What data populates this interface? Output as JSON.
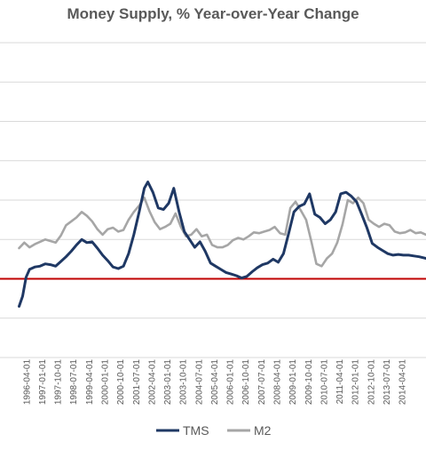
{
  "chart_data": {
    "type": "line",
    "title": "Money Supply, % Year-over-Year Change",
    "xlabel": "",
    "ylabel": "",
    "x_range": [
      "1995-01-01",
      "2015-06-01"
    ],
    "y_range": [
      -10,
      30
    ],
    "y_gridlines": [
      -10,
      -5,
      0,
      5,
      10,
      15,
      20,
      25,
      30
    ],
    "grid": "horizontal",
    "legend_position": "bottom",
    "x_tick_labels": [
      "1996-04-01",
      "1997-01-01",
      "1997-10-01",
      "1998-07-01",
      "1999-04-01",
      "2000-01-01",
      "2000-10-01",
      "2001-07-01",
      "2002-04-01",
      "2003-01-01",
      "2003-10-01",
      "2004-07-01",
      "2005-04-01",
      "2006-01-01",
      "2006-10-01",
      "2007-07-01",
      "2008-04-01",
      "2009-01-01",
      "2009-10-01",
      "2010-07-01",
      "2011-04-01",
      "2012-01-01",
      "2012-10-01",
      "2013-07-01",
      "2014-04-01"
    ],
    "reference_line": {
      "value": 0,
      "color": "#c00000"
    },
    "series": [
      {
        "name": "TMS",
        "color": "#1f3864",
        "points": [
          [
            "1995-12-01",
            -3.5
          ],
          [
            "1996-02-01",
            -2.2
          ],
          [
            "1996-04-01",
            0.2
          ],
          [
            "1996-06-01",
            1.2
          ],
          [
            "1996-09-01",
            1.5
          ],
          [
            "1996-12-01",
            1.6
          ],
          [
            "1997-03-01",
            1.9
          ],
          [
            "1997-06-01",
            1.8
          ],
          [
            "1997-09-01",
            1.6
          ],
          [
            "1997-12-01",
            2.2
          ],
          [
            "1998-03-01",
            2.8
          ],
          [
            "1998-06-01",
            3.5
          ],
          [
            "1998-09-01",
            4.3
          ],
          [
            "1998-12-01",
            5.0
          ],
          [
            "1999-03-01",
            4.6
          ],
          [
            "1999-06-01",
            4.7
          ],
          [
            "1999-09-01",
            3.9
          ],
          [
            "1999-12-01",
            3.0
          ],
          [
            "2000-03-01",
            2.3
          ],
          [
            "2000-06-01",
            1.5
          ],
          [
            "2000-09-01",
            1.3
          ],
          [
            "2000-12-01",
            1.6
          ],
          [
            "2001-03-01",
            3.2
          ],
          [
            "2001-06-01",
            5.6
          ],
          [
            "2001-09-01",
            8.5
          ],
          [
            "2001-12-01",
            11.5
          ],
          [
            "2002-02-01",
            12.3
          ],
          [
            "2002-05-01",
            11.0
          ],
          [
            "2002-08-01",
            9.0
          ],
          [
            "2002-11-01",
            8.8
          ],
          [
            "2003-02-01",
            9.6
          ],
          [
            "2003-05-01",
            11.5
          ],
          [
            "2003-08-01",
            8.5
          ],
          [
            "2003-11-01",
            6.0
          ],
          [
            "2004-02-01",
            5.0
          ],
          [
            "2004-05-01",
            4.0
          ],
          [
            "2004-08-01",
            4.7
          ],
          [
            "2004-11-01",
            3.5
          ],
          [
            "2005-02-01",
            2.0
          ],
          [
            "2005-05-01",
            1.6
          ],
          [
            "2005-08-01",
            1.2
          ],
          [
            "2005-11-01",
            0.8
          ],
          [
            "2006-02-01",
            0.6
          ],
          [
            "2006-05-01",
            0.4
          ],
          [
            "2006-08-01",
            0.1
          ],
          [
            "2006-11-01",
            0.3
          ],
          [
            "2007-02-01",
            0.9
          ],
          [
            "2007-05-01",
            1.4
          ],
          [
            "2007-08-01",
            1.8
          ],
          [
            "2007-11-01",
            2.0
          ],
          [
            "2008-02-01",
            2.5
          ],
          [
            "2008-05-01",
            2.1
          ],
          [
            "2008-08-01",
            3.2
          ],
          [
            "2008-11-01",
            5.8
          ],
          [
            "2009-02-01",
            8.5
          ],
          [
            "2009-05-01",
            9.2
          ],
          [
            "2009-08-01",
            9.5
          ],
          [
            "2009-11-01",
            10.8
          ],
          [
            "2010-02-01",
            8.2
          ],
          [
            "2010-05-01",
            7.8
          ],
          [
            "2010-08-01",
            7.0
          ],
          [
            "2010-11-01",
            7.5
          ],
          [
            "2011-02-01",
            8.5
          ],
          [
            "2011-05-01",
            10.8
          ],
          [
            "2011-08-01",
            11.0
          ],
          [
            "2011-11-01",
            10.5
          ],
          [
            "2012-02-01",
            9.8
          ],
          [
            "2012-05-01",
            8.2
          ],
          [
            "2012-08-01",
            6.5
          ],
          [
            "2012-11-01",
            4.5
          ],
          [
            "2013-02-01",
            4.0
          ],
          [
            "2013-05-01",
            3.6
          ],
          [
            "2013-08-01",
            3.2
          ],
          [
            "2013-11-01",
            3.0
          ],
          [
            "2014-02-01",
            3.1
          ],
          [
            "2014-05-01",
            3.0
          ],
          [
            "2014-08-01",
            3.0
          ],
          [
            "2014-11-01",
            2.9
          ],
          [
            "2015-02-01",
            2.8
          ],
          [
            "2015-06-01",
            2.6
          ]
        ]
      },
      {
        "name": "M2",
        "color": "#a6a6a6",
        "points": [
          [
            "1995-12-01",
            3.9
          ],
          [
            "1996-03-01",
            4.6
          ],
          [
            "1996-06-01",
            4.0
          ],
          [
            "1996-09-01",
            4.4
          ],
          [
            "1996-12-01",
            4.7
          ],
          [
            "1997-03-01",
            5.0
          ],
          [
            "1997-06-01",
            4.8
          ],
          [
            "1997-09-01",
            4.6
          ],
          [
            "1997-12-01",
            5.5
          ],
          [
            "1998-03-01",
            6.8
          ],
          [
            "1998-06-01",
            7.3
          ],
          [
            "1998-09-01",
            7.8
          ],
          [
            "1998-12-01",
            8.5
          ],
          [
            "1999-03-01",
            8.0
          ],
          [
            "1999-06-01",
            7.3
          ],
          [
            "1999-09-01",
            6.3
          ],
          [
            "1999-12-01",
            5.6
          ],
          [
            "2000-03-01",
            6.3
          ],
          [
            "2000-06-01",
            6.5
          ],
          [
            "2000-09-01",
            6.0
          ],
          [
            "2000-12-01",
            6.2
          ],
          [
            "2001-03-01",
            7.5
          ],
          [
            "2001-06-01",
            8.5
          ],
          [
            "2001-09-01",
            9.3
          ],
          [
            "2001-12-01",
            10.3
          ],
          [
            "2002-03-01",
            8.6
          ],
          [
            "2002-06-01",
            7.2
          ],
          [
            "2002-09-01",
            6.3
          ],
          [
            "2002-12-01",
            6.6
          ],
          [
            "2003-03-01",
            7.0
          ],
          [
            "2003-06-01",
            8.3
          ],
          [
            "2003-09-01",
            6.6
          ],
          [
            "2003-12-01",
            5.4
          ],
          [
            "2004-03-01",
            5.6
          ],
          [
            "2004-06-01",
            6.3
          ],
          [
            "2004-09-01",
            5.4
          ],
          [
            "2004-12-01",
            5.6
          ],
          [
            "2005-03-01",
            4.3
          ],
          [
            "2005-06-01",
            4.0
          ],
          [
            "2005-09-01",
            4.0
          ],
          [
            "2005-12-01",
            4.3
          ],
          [
            "2006-03-01",
            4.9
          ],
          [
            "2006-06-01",
            5.2
          ],
          [
            "2006-09-01",
            5.0
          ],
          [
            "2006-12-01",
            5.4
          ],
          [
            "2007-03-01",
            5.9
          ],
          [
            "2007-06-01",
            5.8
          ],
          [
            "2007-09-01",
            6.0
          ],
          [
            "2007-12-01",
            6.2
          ],
          [
            "2008-03-01",
            6.6
          ],
          [
            "2008-06-01",
            5.8
          ],
          [
            "2008-09-01",
            5.6
          ],
          [
            "2008-12-01",
            9.0
          ],
          [
            "2009-03-01",
            9.8
          ],
          [
            "2009-06-01",
            8.7
          ],
          [
            "2009-09-01",
            7.5
          ],
          [
            "2009-12-01",
            4.8
          ],
          [
            "2010-03-01",
            1.9
          ],
          [
            "2010-06-01",
            1.6
          ],
          [
            "2010-09-01",
            2.6
          ],
          [
            "2010-12-01",
            3.2
          ],
          [
            "2011-03-01",
            4.6
          ],
          [
            "2011-06-01",
            6.9
          ],
          [
            "2011-09-01",
            10.0
          ],
          [
            "2011-12-01",
            9.6
          ],
          [
            "2012-03-01",
            10.3
          ],
          [
            "2012-06-01",
            9.6
          ],
          [
            "2012-09-01",
            7.5
          ],
          [
            "2012-12-01",
            7.0
          ],
          [
            "2013-03-01",
            6.6
          ],
          [
            "2013-06-01",
            7.0
          ],
          [
            "2013-09-01",
            6.8
          ],
          [
            "2013-12-01",
            6.0
          ],
          [
            "2014-03-01",
            5.8
          ],
          [
            "2014-06-01",
            5.9
          ],
          [
            "2014-09-01",
            6.2
          ],
          [
            "2014-12-01",
            5.8
          ],
          [
            "2015-03-01",
            5.9
          ],
          [
            "2015-06-01",
            5.6
          ]
        ]
      }
    ]
  }
}
